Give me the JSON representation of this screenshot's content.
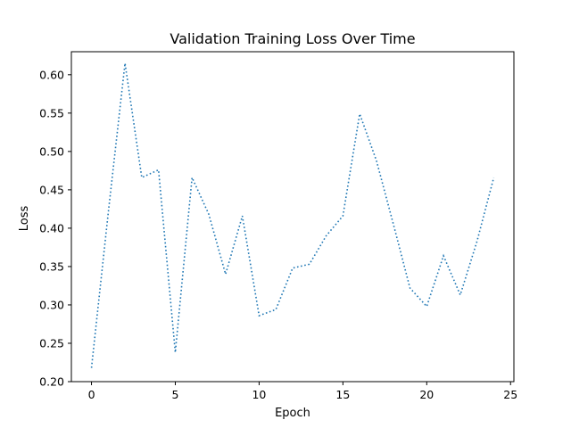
{
  "chart_data": {
    "type": "line",
    "title": "Validation Training Loss Over Time",
    "xlabel": "Epoch",
    "ylabel": "Loss",
    "xlim": [
      -1.2,
      25.2
    ],
    "ylim": [
      0.2,
      0.63
    ],
    "xticks": [
      0,
      5,
      10,
      15,
      20,
      25
    ],
    "yticks": [
      0.2,
      0.25,
      0.3,
      0.35,
      0.4,
      0.45,
      0.5,
      0.55,
      0.6
    ],
    "ytick_labels": [
      "0.20",
      "0.25",
      "0.30",
      "0.35",
      "0.40",
      "0.45",
      "0.50",
      "0.55",
      "0.60"
    ],
    "grid": false,
    "series": [
      {
        "color": "#1f77b4",
        "line_style": "dotted",
        "x": [
          0,
          1,
          2,
          3,
          4,
          5,
          6,
          7,
          8,
          9,
          10,
          11,
          12,
          13,
          14,
          15,
          16,
          17,
          18,
          19,
          20,
          21,
          22,
          23,
          24
        ],
        "y": [
          0.218,
          0.42,
          0.615,
          0.466,
          0.476,
          0.238,
          0.466,
          0.418,
          0.34,
          0.416,
          0.286,
          0.294,
          0.348,
          0.353,
          0.39,
          0.416,
          0.549,
          0.488,
          0.406,
          0.322,
          0.298,
          0.364,
          0.313,
          0.383,
          0.466
        ]
      }
    ]
  }
}
